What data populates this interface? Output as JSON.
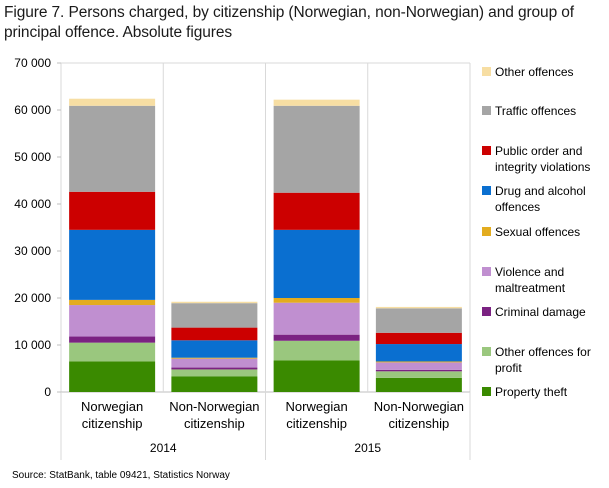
{
  "chart_data": {
    "type": "stacked-bar",
    "title": "Figure 7. Persons charged, by citizenship (Norwegian, non-Norwegian) and group of principal offence. Absolute figures",
    "ylim": [
      0,
      70000
    ],
    "yticks": [
      0,
      10000,
      20000,
      30000,
      40000,
      50000,
      60000,
      70000
    ],
    "ytick_labels": [
      "0",
      "10 000",
      "20 000",
      "30 000",
      "40 000",
      "50 000",
      "60 000",
      "70 000"
    ],
    "grid": false,
    "legend_position": "right",
    "groups": [
      {
        "label": "2014",
        "categories": [
          "Norwegian citizenship",
          "Non-Norwegian citizenship"
        ]
      },
      {
        "label": "2015",
        "categories": [
          "Norwegian citizenship",
          "Non-Norwegian citizenship"
        ]
      }
    ],
    "category_lines": [
      {
        "line1": "Norwegian",
        "line2": "citizenship"
      },
      {
        "line1": "Non-Norwegian",
        "line2": "citizenship"
      },
      {
        "line1": "Norwegian",
        "line2": "citizenship"
      },
      {
        "line1": "Non-Norwegian",
        "line2": "citizenship"
      }
    ],
    "series": [
      {
        "name": "Property theft",
        "legend_lines": [
          "Property theft"
        ],
        "color": "#3a8a00",
        "values": [
          6500,
          3300,
          6700,
          3000
        ]
      },
      {
        "name": "Other offences for profit",
        "legend_lines": [
          "Other offences for",
          "profit"
        ],
        "color": "#9ac77e",
        "values": [
          4000,
          1500,
          4200,
          1400
        ]
      },
      {
        "name": "Criminal damage",
        "legend_lines": [
          "Criminal damage"
        ],
        "color": "#7b2282",
        "values": [
          1300,
          400,
          1300,
          300
        ]
      },
      {
        "name": "Violence and maltreatment",
        "legend_lines": [
          "Violence and",
          "maltreatment"
        ],
        "color": "#c08fd0",
        "values": [
          6700,
          1900,
          6800,
          1600
        ]
      },
      {
        "name": "Sexual offences",
        "legend_lines": [
          "Sexual offences"
        ],
        "color": "#e3ac1f",
        "values": [
          1100,
          200,
          1000,
          200
        ]
      },
      {
        "name": "Drug and alcohol offences",
        "legend_lines": [
          "Drug and alcohol",
          "offences"
        ],
        "color": "#0a6fd0",
        "values": [
          14900,
          3700,
          14500,
          3700
        ]
      },
      {
        "name": "Public order and integrity violations",
        "legend_lines": [
          "Public order and",
          "integrity violations"
        ],
        "color": "#cc0000",
        "values": [
          8100,
          2700,
          7900,
          2400
        ]
      },
      {
        "name": "Traffic offences",
        "legend_lines": [
          "Traffic offences"
        ],
        "color": "#a5a5a5",
        "values": [
          18300,
          5200,
          18500,
          5200
        ]
      },
      {
        "name": "Other offences",
        "legend_lines": [
          "Other offences"
        ],
        "color": "#f7dea3",
        "values": [
          1500,
          300,
          1300,
          300
        ]
      }
    ]
  },
  "source": "Source: StatBank, table 09421, Statistics Norway"
}
